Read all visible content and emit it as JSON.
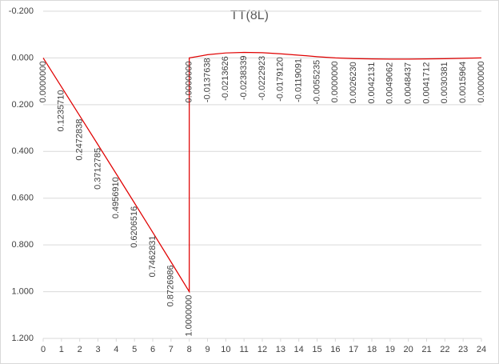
{
  "chart_data": {
    "type": "line",
    "title": "TT(8L)",
    "x": [
      0,
      1,
      2,
      3,
      4,
      5,
      6,
      7,
      8,
      8,
      9,
      10,
      11,
      12,
      13,
      14,
      15,
      16,
      17,
      18,
      19,
      20,
      21,
      22,
      23,
      24
    ],
    "series": [
      {
        "name": "TT(8L)",
        "color": "#e00000",
        "values": [
          0,
          0.123571,
          0.2472838,
          0.3712785,
          0.495691,
          0.6206516,
          0.7462831,
          0.8726986,
          1.0,
          0,
          -0.0137638,
          -0.0213626,
          -0.0238339,
          -0.0222923,
          -0.017912,
          -0.0119091,
          -0.0055235,
          0,
          0.002623,
          0.0042131,
          0.0049062,
          0.0048437,
          0.0041712,
          0.0030381,
          0.0015964,
          0
        ],
        "value_labels": [
          "0.0000000",
          "0.1235710",
          "0.2472838",
          "0.3712785",
          "0.4956910",
          "0.6206516",
          "0.7462831",
          "0.8726986",
          "1.0000000",
          "0.0000000",
          "-0.0137638",
          "-0.0213626",
          "-0.0238339",
          "-0.0222923",
          "-0.0179120",
          "-0.0119091",
          "-0.0055235",
          "0.0000000",
          "0.0026230",
          "0.0042131",
          "0.0049062",
          "0.0048437",
          "0.0041712",
          "0.0030381",
          "0.0015964",
          "0.0000000"
        ]
      }
    ],
    "xlim": [
      0,
      24
    ],
    "xticks": [
      0,
      1,
      2,
      3,
      4,
      5,
      6,
      7,
      8,
      9,
      10,
      11,
      12,
      13,
      14,
      15,
      16,
      17,
      18,
      19,
      20,
      21,
      22,
      23,
      24
    ],
    "ylim": [
      -0.2,
      1.2
    ],
    "yticks": [
      {
        "value": -0.2,
        "label": "-0.200"
      },
      {
        "value": 0,
        "label": "0.000"
      },
      {
        "value": 0.2,
        "label": "0.200"
      },
      {
        "value": 0.4,
        "label": "0.400"
      },
      {
        "value": 0.6,
        "label": "0.600"
      },
      {
        "value": 0.8,
        "label": "0.800"
      },
      {
        "value": 1.0,
        "label": "1.000"
      },
      {
        "value": 1.2,
        "label": "1.200"
      }
    ],
    "y_inverted": true,
    "grid": true
  }
}
